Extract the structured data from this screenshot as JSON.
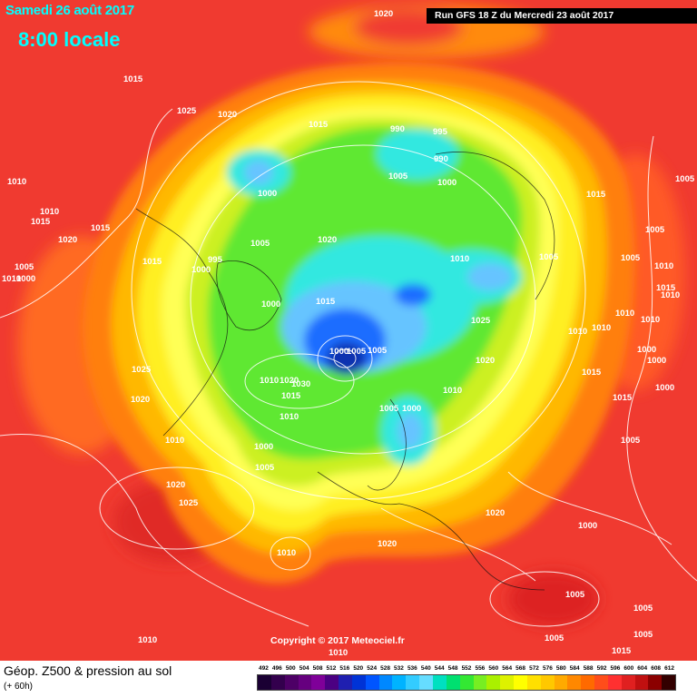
{
  "header": {
    "date": "Samedi 26 août 2017",
    "time": "8:00 locale",
    "run": "Run GFS 18 Z du Mercredi 23 août 2017"
  },
  "footer": {
    "parameter": "Géop. Z500 & pression au sol",
    "lead": "(+ 60h)",
    "copyright": "Copyright © 2017 Meteociel.fr"
  },
  "scale": {
    "labels": [
      "492",
      "496",
      "500",
      "504",
      "508",
      "512",
      "516",
      "520",
      "524",
      "528",
      "532",
      "536",
      "540",
      "544",
      "548",
      "552",
      "556",
      "560",
      "564",
      "568",
      "572",
      "576",
      "580",
      "584",
      "588",
      "592",
      "596",
      "600",
      "604",
      "608",
      "612"
    ],
    "colors": [
      "#1a0033",
      "#33004d",
      "#4d0066",
      "#66007f",
      "#7f0099",
      "#4b0082",
      "#1f1fb0",
      "#0033d6",
      "#0055ff",
      "#0088ff",
      "#00b3ff",
      "#33ccff",
      "#66ddff",
      "#00e0c0",
      "#00e070",
      "#33e833",
      "#77ee22",
      "#aaf000",
      "#ddf200",
      "#ffff00",
      "#ffe000",
      "#ffc800",
      "#ffaa00",
      "#ff8800",
      "#ff6a00",
      "#ff4d1a",
      "#ff3030",
      "#e02020",
      "#c01010",
      "#8b0000",
      "#330000"
    ]
  },
  "map_colors": {
    "outer": "#f03a30",
    "ring_orange": "#ff7f10",
    "ring_gold": "#ffb800",
    "ring_yellow": "#ffef20",
    "inner_yellow": "#ffff55",
    "green_yellow": "#ccf020",
    "green": "#5ee832",
    "cyan": "#30e8e0",
    "light_blue": "#66c4ff",
    "blue": "#1f6dff",
    "deep_blue": "#1030b0"
  },
  "isobars": [
    "1020",
    "1015",
    "1025",
    "1020",
    "1010",
    "1015",
    "1010",
    "1020",
    "1015",
    "1005",
    "1010",
    "1000",
    "1015",
    "1000",
    "995",
    "1005",
    "1020",
    "1000",
    "1015",
    "990",
    "995",
    "990",
    "1005",
    "1000",
    "1010",
    "1005",
    "1015",
    "1025",
    "1020",
    "1005",
    "1015",
    "1000",
    "1000",
    "1005",
    "1025",
    "1020",
    "1010",
    "1010",
    "1020",
    "1030",
    "1015",
    "1010",
    "1005",
    "1000",
    "1005",
    "1000",
    "1020",
    "1025",
    "1010",
    "1020",
    "1020",
    "1000",
    "1005",
    "1005",
    "1015",
    "1005",
    "1005",
    "1010",
    "1010",
    "1010",
    "1010",
    "1015",
    "1010",
    "1010",
    "1000",
    "1010",
    "1005",
    "1010",
    "1000",
    "1000",
    "1015",
    "1015",
    "1010",
    "1005",
    "1005",
    "1005"
  ]
}
